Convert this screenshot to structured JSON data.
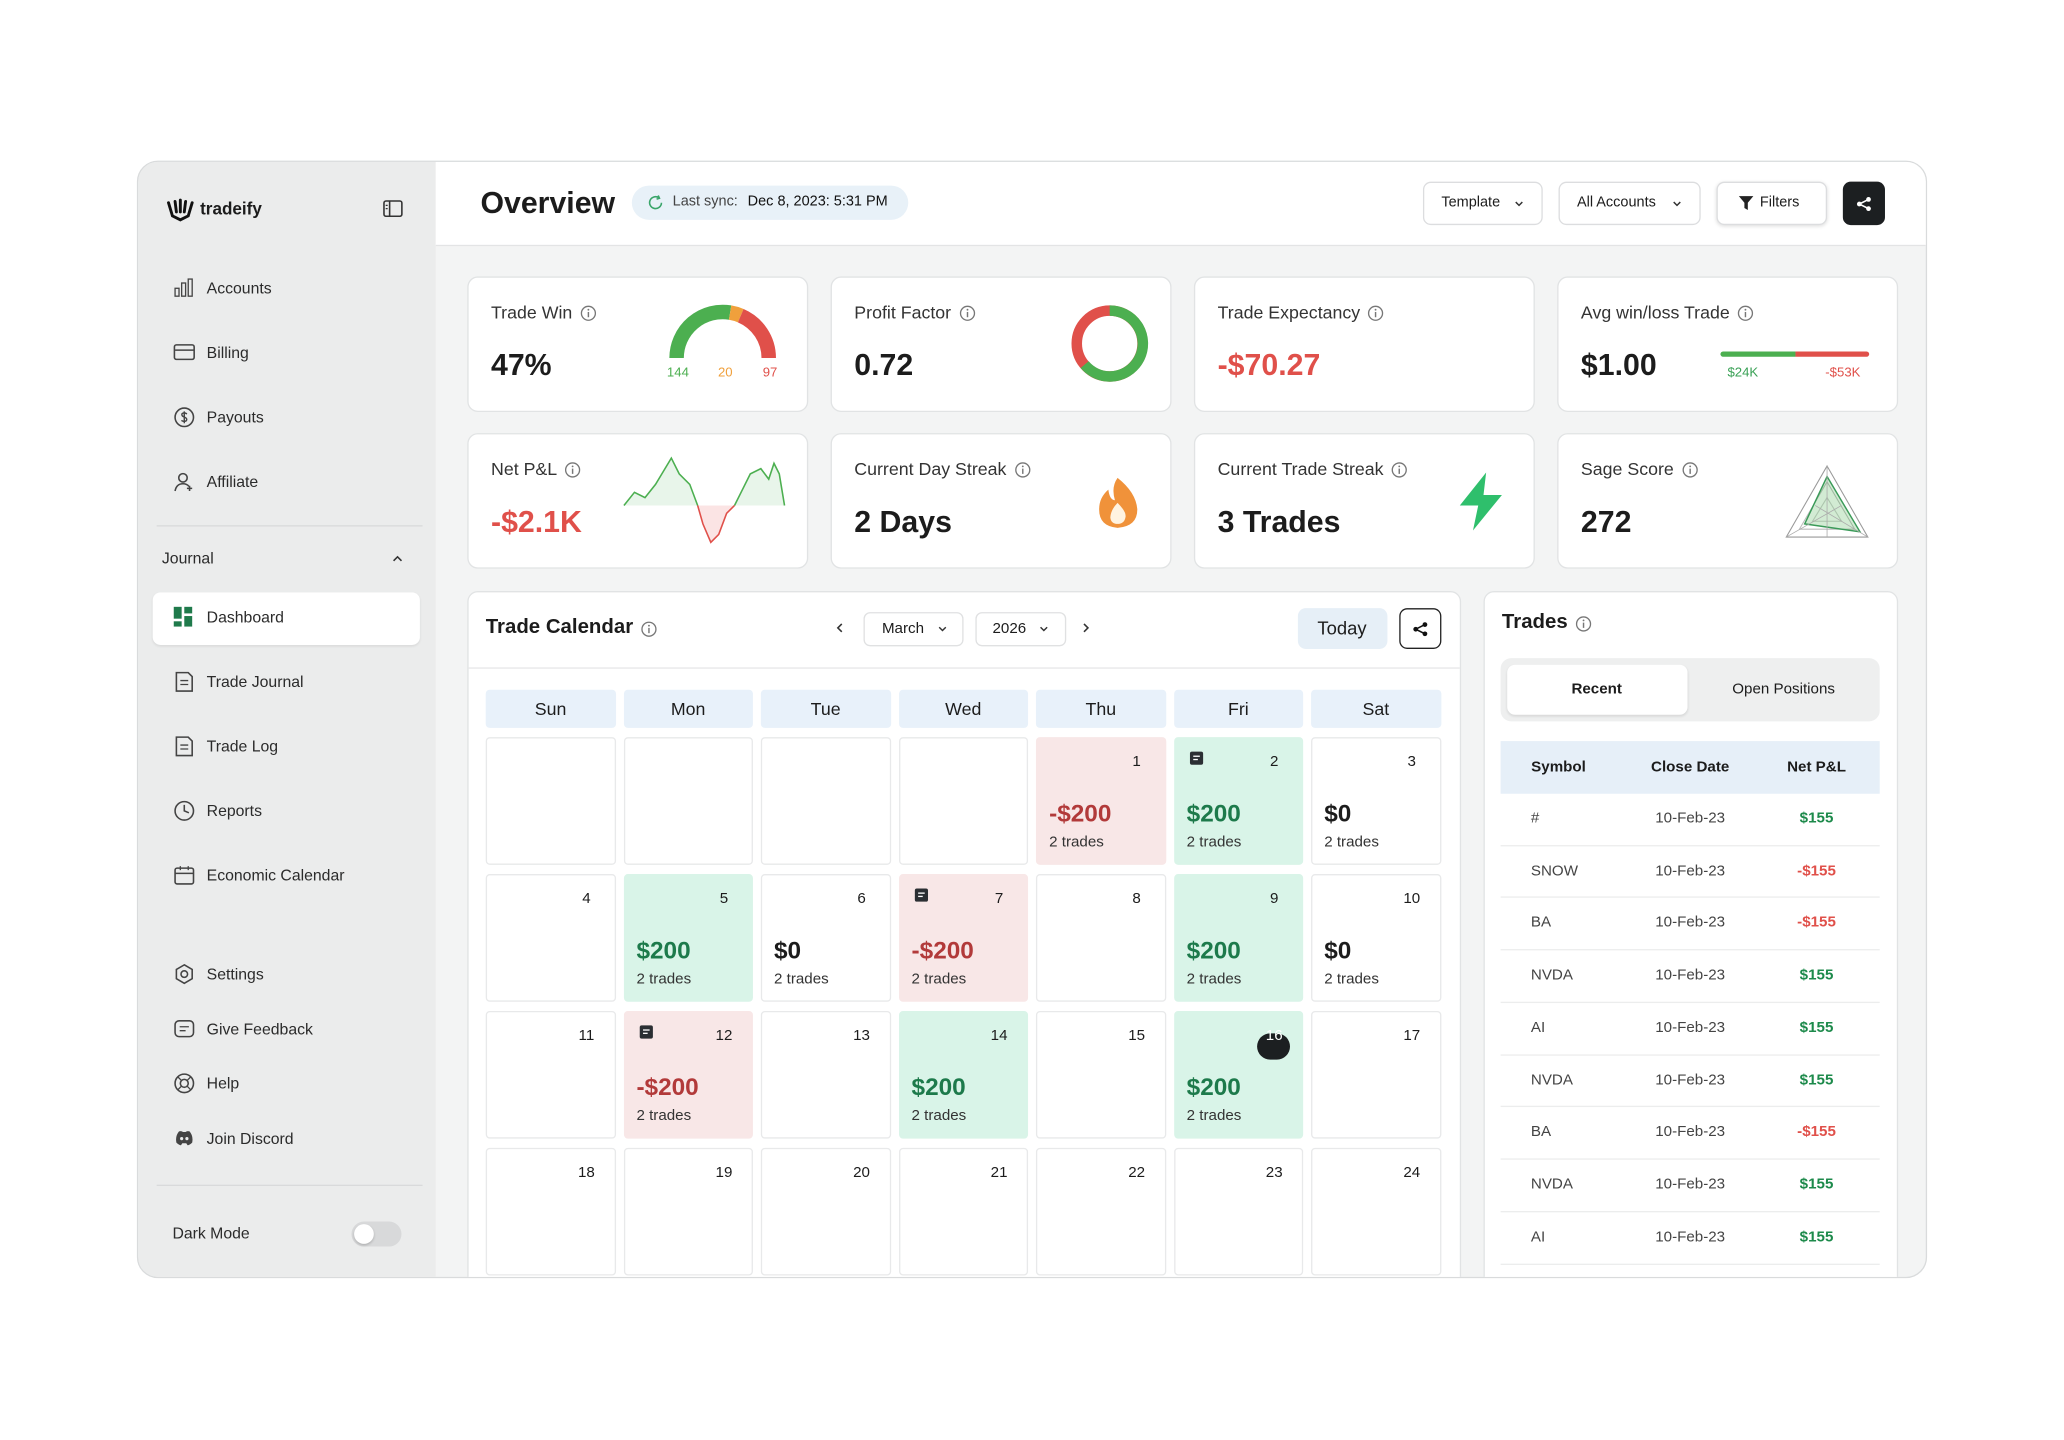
{
  "sidebar": {
    "brand": "tradeify",
    "nav": [
      "Accounts",
      "Billing",
      "Payouts",
      "Affiliate"
    ],
    "section": "Journal",
    "journal": [
      "Dashboard",
      "Trade Journal",
      "Trade Log",
      "Reports",
      "Economic Calendar"
    ],
    "footer_nav": [
      "Settings",
      "Give Feedback",
      "Help",
      "Join Discord"
    ],
    "dark_mode": "Dark Mode"
  },
  "header": {
    "title": "Overview",
    "sync_label": "Last sync:",
    "sync_time": "Dec 8, 2023: 5:31 PM",
    "buttons": [
      "Template",
      "All Accounts",
      "Filters"
    ]
  },
  "stats": [
    {
      "label": "Trade Win",
      "value": "47%",
      "color": "#1c1c1c",
      "gauge": [
        144,
        20,
        97
      ],
      "gauge_colors": [
        "#4caf50",
        "#f0a03c",
        "#e0504a"
      ]
    },
    {
      "label": "Profit Factor",
      "value": "0.72",
      "color": "#1c1c1c"
    },
    {
      "label": "Trade Expectancy",
      "value": "-$70.27",
      "color": "#e0504a"
    },
    {
      "label": "Avg win/loss Trade",
      "value": "$1.00",
      "color": "#1c1c1c",
      "win": "$24K",
      "loss": "-$53K"
    },
    {
      "label": "Net P&L",
      "value": "-$2.1K",
      "color": "#e0504a"
    },
    {
      "label": "Current Day Streak",
      "value": "2 Days",
      "color": "#1c1c1c"
    },
    {
      "label": "Current Trade Streak",
      "value": "3 Trades",
      "color": "#1c1c1c"
    },
    {
      "label": "Sage Score",
      "value": "272",
      "color": "#1c1c1c"
    }
  ],
  "calendar": {
    "title": "Trade Calendar",
    "month": "March",
    "year": "2026",
    "today_button": "Today",
    "weekdays": [
      "Sun",
      "Mon",
      "Tue",
      "Wed",
      "Thu",
      "Fri",
      "Sat"
    ],
    "tones": {
      "win": {
        "bg": "#d9f4e8",
        "fg": "#1d7a4b"
      },
      "loss": {
        "bg": "#f8e7e7",
        "fg": "#b23a3a"
      },
      "flat": {
        "bg": "#ffffff",
        "fg": "#1c1c1c"
      },
      "none": {
        "bg": "#ffffff",
        "fg": "#1c1c1c"
      }
    },
    "cells": [
      null,
      null,
      null,
      null,
      {
        "day": 1,
        "pnl": "-$200",
        "trades": "2 trades",
        "tone": "loss"
      },
      {
        "day": 2,
        "pnl": "$200",
        "trades": "2 trades",
        "tone": "win",
        "note": true
      },
      {
        "day": 3,
        "pnl": "$0",
        "trades": "2 trades",
        "tone": "flat"
      },
      {
        "day": 4,
        "tone": "none"
      },
      {
        "day": 5,
        "pnl": "$200",
        "trades": "2 trades",
        "tone": "win"
      },
      {
        "day": 6,
        "pnl": "$0",
        "trades": "2 trades",
        "tone": "flat"
      },
      {
        "day": 7,
        "pnl": "-$200",
        "trades": "2 trades",
        "tone": "loss",
        "note": true
      },
      {
        "day": 8,
        "tone": "none"
      },
      {
        "day": 9,
        "pnl": "$200",
        "trades": "2 trades",
        "tone": "win"
      },
      {
        "day": 10,
        "pnl": "$0",
        "trades": "2 trades",
        "tone": "flat"
      },
      {
        "day": 11,
        "tone": "none"
      },
      {
        "day": 12,
        "pnl": "-$200",
        "trades": "2 trades",
        "tone": "loss",
        "note": true
      },
      {
        "day": 13,
        "tone": "none"
      },
      {
        "day": 14,
        "pnl": "$200",
        "trades": "2 trades",
        "tone": "win"
      },
      {
        "day": 15,
        "tone": "none"
      },
      {
        "day": 16,
        "pnl": "$200",
        "trades": "2 trades",
        "tone": "win",
        "today": true
      },
      {
        "day": 17,
        "tone": "none"
      },
      {
        "day": 18,
        "tone": "none"
      },
      {
        "day": 19,
        "tone": "none"
      },
      {
        "day": 20,
        "tone": "none"
      },
      {
        "day": 21,
        "tone": "none"
      },
      {
        "day": 22,
        "tone": "none"
      },
      {
        "day": 23,
        "tone": "none"
      },
      {
        "day": 24,
        "tone": "none"
      }
    ]
  },
  "trades": {
    "title": "Trades",
    "tabs": [
      "Recent",
      "Open Positions"
    ],
    "columns": [
      "Symbol",
      "Close Date",
      "Net P&L"
    ],
    "rows": [
      {
        "symbol": "#",
        "date": "10-Feb-23",
        "pnl": "$155",
        "color": "#1d8a4b"
      },
      {
        "symbol": "SNOW",
        "date": "10-Feb-23",
        "pnl": "-$155",
        "color": "#e0504a"
      },
      {
        "symbol": "BA",
        "date": "10-Feb-23",
        "pnl": "-$155",
        "color": "#e0504a"
      },
      {
        "symbol": "NVDA",
        "date": "10-Feb-23",
        "pnl": "$155",
        "color": "#1d8a4b"
      },
      {
        "symbol": "AI",
        "date": "10-Feb-23",
        "pnl": "$155",
        "color": "#1d8a4b"
      },
      {
        "symbol": "NVDA",
        "date": "10-Feb-23",
        "pnl": "$155",
        "color": "#1d8a4b"
      },
      {
        "symbol": "BA",
        "date": "10-Feb-23",
        "pnl": "-$155",
        "color": "#e0504a"
      },
      {
        "symbol": "NVDA",
        "date": "10-Feb-23",
        "pnl": "$155",
        "color": "#1d8a4b"
      },
      {
        "symbol": "AI",
        "date": "10-Feb-23",
        "pnl": "$155",
        "color": "#1d8a4b"
      }
    ]
  }
}
